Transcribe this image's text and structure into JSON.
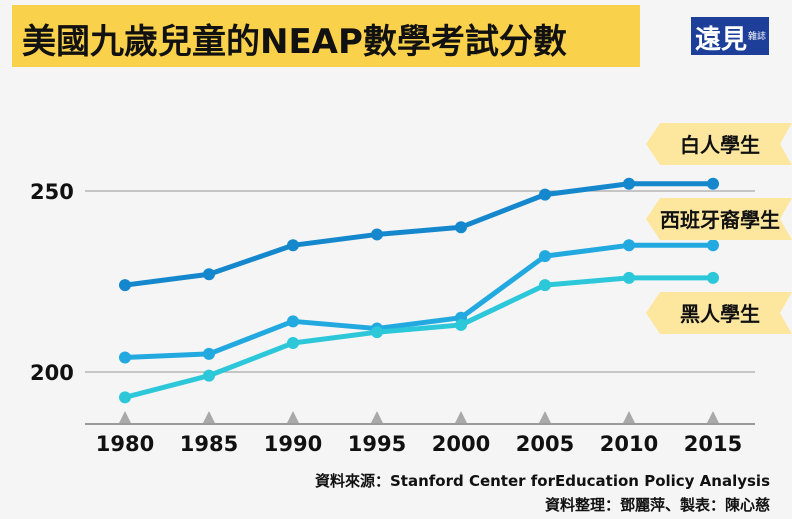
{
  "title": "美國九歲兒童的NEAP數學考試分數",
  "logo": {
    "main": "遠見",
    "sub": "雜誌"
  },
  "source": "資料來源：Stanford Center forEducation Policy Analysis",
  "credits": "資料整理：鄧麗萍、製表：陳心慈",
  "chart_data": {
    "type": "line",
    "title": "美國九歲兒童的NEAP數學考試分數",
    "x": [
      1980,
      1985,
      1990,
      1995,
      2000,
      2005,
      2010,
      2015
    ],
    "xtick_labels": [
      "1980",
      "1985",
      "1990",
      "1995",
      "2000",
      "2005",
      "2010",
      "2015"
    ],
    "yticks": [
      200,
      250
    ],
    "ytick_labels": [
      "200",
      "250"
    ],
    "ylim": [
      186,
      263
    ],
    "grid": "horizontal",
    "legend": "right, flag labels",
    "series": [
      {
        "name": "白人學生",
        "color": "#1587cc",
        "values": [
          224,
          227,
          235,
          238,
          240,
          249,
          252,
          252
        ]
      },
      {
        "name": "西班牙裔學生",
        "color": "#22a9e0",
        "values": [
          204,
          205,
          214,
          212,
          215,
          232,
          235,
          235
        ]
      },
      {
        "name": "黑人學生",
        "color": "#2dc7da",
        "values": [
          193,
          199,
          208,
          211,
          213,
          224,
          226,
          226
        ]
      }
    ],
    "label_bg": "#fde79f"
  }
}
